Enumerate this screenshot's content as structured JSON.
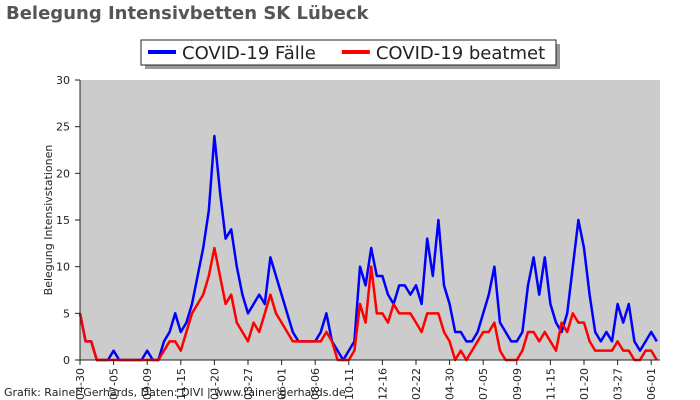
{
  "chart_data": {
    "type": "line",
    "title": "Belegung Intensivbetten SK Lübeck",
    "y_label": "Belegung Intensivstationen",
    "credit": "Grafik: Rainer Gerhards, Daten: DIVI | www.rainer-gerhards.de",
    "legend": "top",
    "background": "#cccccc",
    "grid": false,
    "ylim": [
      0,
      30
    ],
    "yticks": [
      0,
      5,
      10,
      15,
      20,
      25,
      30
    ],
    "categories": [
      "04-30",
      null,
      null,
      null,
      null,
      null,
      "07-05",
      null,
      null,
      null,
      null,
      null,
      "09-09",
      null,
      null,
      null,
      null,
      null,
      "11-15",
      null,
      null,
      null,
      null,
      null,
      "01-20",
      null,
      null,
      null,
      null,
      null,
      "03-27",
      null,
      null,
      null,
      null,
      null,
      "06-01",
      null,
      null,
      null,
      null,
      null,
      "08-06",
      null,
      null,
      null,
      null,
      null,
      "10-11",
      null,
      null,
      null,
      null,
      null,
      "12-16",
      null,
      null,
      null,
      null,
      null,
      "02-22",
      null,
      null,
      null,
      null,
      null,
      "04-30",
      null,
      null,
      null,
      null,
      null,
      "07-05",
      null,
      null,
      null,
      null,
      null,
      "09-09",
      null,
      null,
      null,
      null,
      null,
      "11-15",
      null,
      null,
      null,
      null,
      null,
      "01-20",
      null,
      null,
      null,
      null,
      null,
      "03-27",
      null,
      null,
      null,
      null,
      null,
      "06-01",
      null
    ],
    "series": [
      {
        "name": "COVID-19 Fälle",
        "color": "#0000ff",
        "values": [
          5,
          2,
          2,
          0,
          0,
          0,
          1,
          0,
          0,
          0,
          0,
          0,
          1,
          0,
          0,
          2,
          3,
          5,
          3,
          4,
          6,
          9,
          12,
          16,
          24,
          18,
          13,
          14,
          10,
          7,
          5,
          6,
          7,
          6,
          11,
          9,
          7,
          5,
          3,
          2,
          2,
          2,
          2,
          3,
          5,
          2,
          1,
          0,
          1,
          2,
          10,
          8,
          12,
          9,
          9,
          7,
          6,
          8,
          8,
          7,
          8,
          6,
          13,
          9,
          15,
          8,
          6,
          3,
          3,
          2,
          2,
          3,
          5,
          7,
          10,
          4,
          3,
          2,
          2,
          3,
          8,
          11,
          7,
          11,
          6,
          4,
          3,
          5,
          10,
          15,
          12,
          7,
          3,
          2,
          3,
          2,
          6,
          4,
          6,
          2,
          1,
          2,
          3,
          2
        ]
      },
      {
        "name": "COVID-19 beatmet",
        "color": "#ff0000",
        "values": [
          5,
          2,
          2,
          0,
          0,
          0,
          0,
          0,
          0,
          0,
          0,
          0,
          0,
          0,
          0,
          1,
          2,
          2,
          1,
          3,
          5,
          6,
          7,
          9,
          12,
          9,
          6,
          7,
          4,
          3,
          2,
          4,
          3,
          5,
          7,
          5,
          4,
          3,
          2,
          2,
          2,
          2,
          2,
          2,
          3,
          2,
          0,
          0,
          0,
          1,
          6,
          4,
          10,
          5,
          5,
          4,
          6,
          5,
          5,
          5,
          4,
          3,
          5,
          5,
          5,
          3,
          2,
          0,
          1,
          0,
          1,
          2,
          3,
          3,
          4,
          1,
          0,
          0,
          0,
          1,
          3,
          3,
          2,
          3,
          2,
          1,
          4,
          3,
          5,
          4,
          4,
          2,
          1,
          1,
          1,
          1,
          2,
          1,
          1,
          0,
          0,
          1,
          1,
          0
        ]
      }
    ]
  }
}
